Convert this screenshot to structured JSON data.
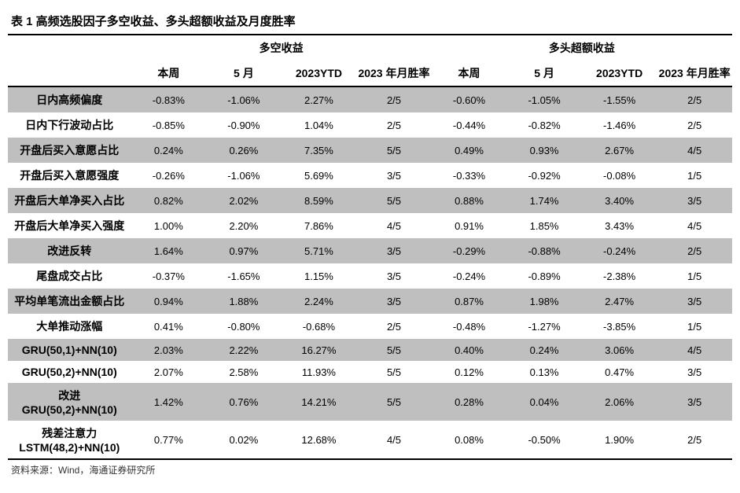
{
  "title": "表 1 高频选股因子多空收益、多头超额收益及月度胜率",
  "group_headers": {
    "g1": "多空收益",
    "g2": "多头超额收益"
  },
  "sub_headers": {
    "c1": "本周",
    "c2": "5 月",
    "c3": "2023YTD",
    "c4": "2023 年月胜率",
    "c5": "本周",
    "c6": "5 月",
    "c7": "2023YTD",
    "c8": "2023 年月胜率"
  },
  "rows": [
    {
      "label": "日内高频偏度",
      "v": [
        "-0.83%",
        "-1.06%",
        "2.27%",
        "2/5",
        "-0.60%",
        "-1.05%",
        "-1.55%",
        "2/5"
      ]
    },
    {
      "label": "日内下行波动占比",
      "v": [
        "-0.85%",
        "-0.90%",
        "1.04%",
        "2/5",
        "-0.44%",
        "-0.82%",
        "-1.46%",
        "2/5"
      ]
    },
    {
      "label": "开盘后买入意愿占比",
      "v": [
        "0.24%",
        "0.26%",
        "7.35%",
        "5/5",
        "0.49%",
        "0.93%",
        "2.67%",
        "4/5"
      ]
    },
    {
      "label": "开盘后买入意愿强度",
      "v": [
        "-0.26%",
        "-1.06%",
        "5.69%",
        "3/5",
        "-0.33%",
        "-0.92%",
        "-0.08%",
        "1/5"
      ]
    },
    {
      "label": "开盘后大单净买入占比",
      "v": [
        "0.82%",
        "2.02%",
        "8.59%",
        "5/5",
        "0.88%",
        "1.74%",
        "3.40%",
        "3/5"
      ]
    },
    {
      "label": "开盘后大单净买入强度",
      "v": [
        "1.00%",
        "2.20%",
        "7.86%",
        "4/5",
        "0.91%",
        "1.85%",
        "3.43%",
        "4/5"
      ]
    },
    {
      "label": "改进反转",
      "v": [
        "1.64%",
        "0.97%",
        "5.71%",
        "3/5",
        "-0.29%",
        "-0.88%",
        "-0.24%",
        "2/5"
      ]
    },
    {
      "label": "尾盘成交占比",
      "v": [
        "-0.37%",
        "-1.65%",
        "1.15%",
        "3/5",
        "-0.24%",
        "-0.89%",
        "-2.38%",
        "1/5"
      ]
    },
    {
      "label": "平均单笔流出金额占比",
      "v": [
        "0.94%",
        "1.88%",
        "2.24%",
        "3/5",
        "0.87%",
        "1.98%",
        "2.47%",
        "3/5"
      ]
    },
    {
      "label": "大单推动涨幅",
      "v": [
        "0.41%",
        "-0.80%",
        "-0.68%",
        "2/5",
        "-0.48%",
        "-1.27%",
        "-3.85%",
        "1/5"
      ]
    },
    {
      "label": "GRU(50,1)+NN(10)",
      "v": [
        "2.03%",
        "2.22%",
        "16.27%",
        "5/5",
        "0.40%",
        "0.24%",
        "3.06%",
        "4/5"
      ]
    },
    {
      "label": "GRU(50,2)+NN(10)",
      "v": [
        "2.07%",
        "2.58%",
        "11.93%",
        "5/5",
        "0.12%",
        "0.13%",
        "0.47%",
        "3/5"
      ]
    },
    {
      "label": "改进 GRU(50,2)+NN(10)",
      "v": [
        "1.42%",
        "0.76%",
        "14.21%",
        "5/5",
        "0.28%",
        "0.04%",
        "2.06%",
        "3/5"
      ]
    },
    {
      "label": "残差注意力 LSTM(48,2)+NN(10)",
      "v": [
        "0.77%",
        "0.02%",
        "12.68%",
        "4/5",
        "0.08%",
        "-0.50%",
        "1.90%",
        "2/5"
      ]
    }
  ],
  "source": "资料来源：Wind，海通证券研究所",
  "style": {
    "stripe_color": "#bfbfbf",
    "plain_color": "#ffffff",
    "border_color": "#000000",
    "font_family": "SimSun",
    "cell_fontsize": 13,
    "header_fontsize": 14,
    "title_fontsize": 15
  }
}
